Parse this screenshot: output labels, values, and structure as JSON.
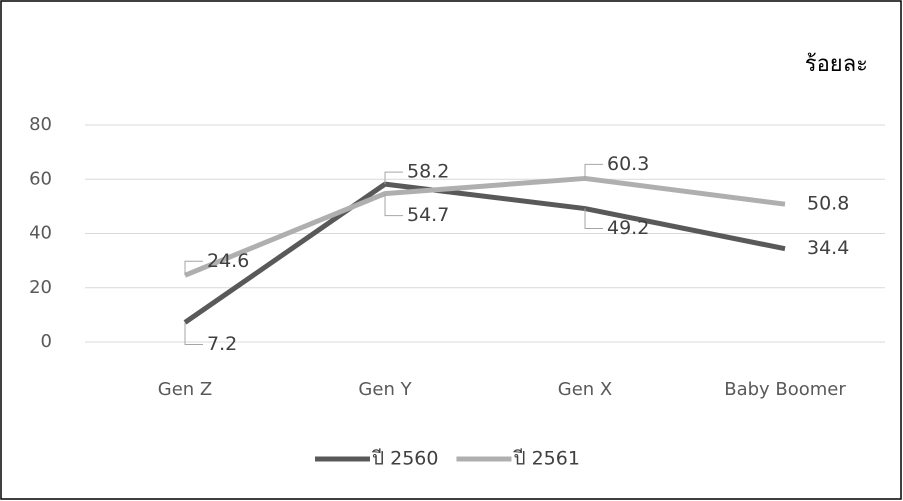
{
  "chart_data": {
    "type": "line",
    "annotation": "ร้อยละ",
    "categories": [
      "Gen Z",
      "Gen Y",
      "Gen X",
      "Baby Boomer"
    ],
    "series": [
      {
        "name": "ปี 2560",
        "color": "#595959",
        "values": [
          7.2,
          58.2,
          49.2,
          34.4
        ]
      },
      {
        "name": "ปี 2561",
        "color": "#afafaf",
        "values": [
          24.6,
          54.7,
          60.3,
          50.8
        ]
      }
    ],
    "ylim": [
      0,
      80
    ],
    "yticks": [
      0,
      20,
      40,
      60,
      80
    ],
    "grid": true,
    "legend": "bottom"
  }
}
